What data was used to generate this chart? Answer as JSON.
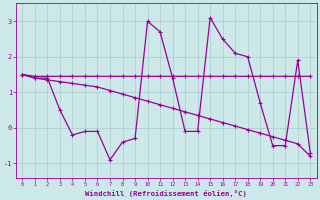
{
  "xlabel": "Windchill (Refroidissement éolien,°C)",
  "hours": [
    0,
    1,
    2,
    3,
    4,
    5,
    6,
    7,
    8,
    9,
    10,
    11,
    12,
    13,
    14,
    15,
    16,
    17,
    18,
    19,
    20,
    21,
    22,
    23
  ],
  "line_spiky": [
    1.5,
    1.4,
    1.4,
    0.5,
    -0.2,
    -0.1,
    -0.1,
    -0.9,
    -0.4,
    -0.3,
    3.0,
    2.7,
    1.4,
    -0.1,
    -0.1,
    3.1,
    2.5,
    2.1,
    2.0,
    0.7,
    -0.5,
    -0.5,
    1.9,
    -0.7
  ],
  "line_flat": [
    1.5,
    1.45,
    1.45,
    1.45,
    1.45,
    1.45,
    1.45,
    1.45,
    1.45,
    1.45,
    1.45,
    1.45,
    1.45,
    1.45,
    1.45,
    1.45,
    1.45,
    1.45,
    1.45,
    1.45,
    1.45,
    1.45,
    1.45,
    1.45
  ],
  "line_diag": [
    1.5,
    1.4,
    1.35,
    1.3,
    1.25,
    1.2,
    1.15,
    1.05,
    0.95,
    0.85,
    0.75,
    0.65,
    0.55,
    0.45,
    0.35,
    0.25,
    0.15,
    0.05,
    -0.05,
    -0.15,
    -0.25,
    -0.35,
    -0.45,
    -0.8
  ],
  "line_color": "#990099",
  "bg_color": "#cce8e8",
  "grid_color": "#aacccc",
  "ylim": [
    -1.4,
    3.5
  ],
  "xlim": [
    -0.5,
    23.5
  ],
  "yticks": [
    -1,
    0,
    1,
    2,
    3
  ],
  "xticks": [
    0,
    1,
    2,
    3,
    4,
    5,
    6,
    7,
    8,
    9,
    10,
    11,
    12,
    13,
    14,
    15,
    16,
    17,
    18,
    19,
    20,
    21,
    22,
    23
  ]
}
